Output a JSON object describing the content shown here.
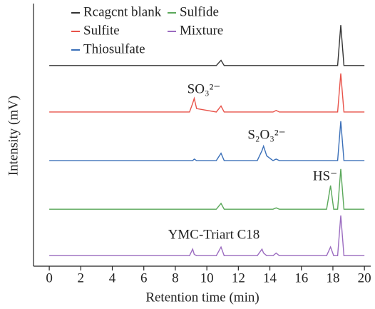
{
  "chart_data": {
    "type": "line",
    "xlabel": "Retention time (min)",
    "ylabel": "Intensity (mV)",
    "x": [
      0,
      8.9,
      9.1,
      9.2,
      9.35,
      10.6,
      10.9,
      11.1,
      13.2,
      13.5,
      13.6,
      13.8,
      14.2,
      14.4,
      14.6,
      17.6,
      17.85,
      18.05,
      18.3,
      18.5,
      18.7,
      20
    ],
    "xlim": [
      -1,
      20.4
    ],
    "xticks": [
      0,
      2,
      4,
      6,
      8,
      10,
      12,
      14,
      16,
      18,
      20
    ],
    "ylim": [
      0,
      100
    ],
    "series": [
      {
        "name": "Rcagcnt blank",
        "color": "#333333",
        "values": [
          76.4,
          76.4,
          76.4,
          76.4,
          76.4,
          76.4,
          78.4,
          76.4,
          76.4,
          76.4,
          76.4,
          76.4,
          76.4,
          76.4,
          76.4,
          76.4,
          76.4,
          76.4,
          76.4,
          91.8,
          76.4,
          76.4
        ]
      },
      {
        "name": "Sulfite",
        "color": "#e8534a",
        "values": [
          58.7,
          58.7,
          62,
          63.9,
          60,
          58.7,
          61,
          58.7,
          58.7,
          58.7,
          58.7,
          58.7,
          58.7,
          59.3,
          58.7,
          58.7,
          58.7,
          58.7,
          58.7,
          73.4,
          58.7,
          58.7
        ]
      },
      {
        "name": "Thiosulfate",
        "color": "#3a6fb8",
        "values": [
          40.2,
          40.2,
          40.2,
          40.8,
          40.2,
          40.2,
          43,
          40.2,
          40.2,
          44,
          45.7,
          42,
          40.2,
          40.8,
          40.2,
          40.2,
          40.2,
          40.2,
          40.2,
          55.2,
          40.2,
          40.2
        ]
      },
      {
        "name": "Sulfide",
        "color": "#5aa85a",
        "values": [
          21.7,
          21.7,
          21.7,
          21.7,
          21.7,
          21.7,
          23.9,
          21.7,
          21.7,
          21.7,
          21.7,
          21.7,
          21.7,
          22.2,
          21.7,
          21.7,
          30.7,
          21.7,
          21.7,
          37,
          21.7,
          21.7
        ]
      },
      {
        "name": "Mixture",
        "color": "#9b6cc0",
        "values": [
          4,
          4,
          6.5,
          4.5,
          4,
          4,
          7.3,
          4,
          4,
          6.5,
          5,
          4,
          4,
          5,
          4,
          4,
          7.3,
          4,
          4,
          19.3,
          4,
          4
        ]
      }
    ],
    "annotations": [
      "SO₃²⁻",
      "S₂O₃²⁻",
      "HS⁻",
      "YMC-Triart C18"
    ]
  }
}
